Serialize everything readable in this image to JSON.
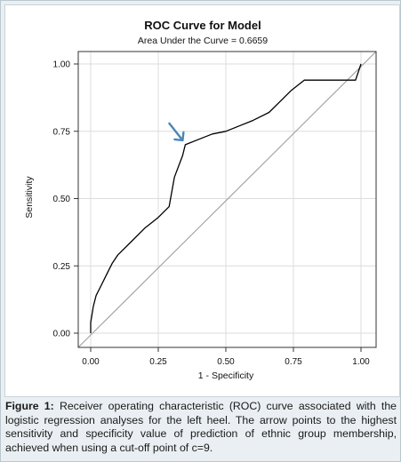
{
  "chart_data": {
    "type": "line",
    "title": "ROC Curve for Model",
    "subtitle": "Area Under the Curve = 0.6659",
    "xlabel": "1 - Specificity",
    "ylabel": "Sensitivity",
    "xlim": [
      0,
      1
    ],
    "ylim": [
      0,
      1
    ],
    "x_ticks": [
      "0.00",
      "0.25",
      "0.50",
      "0.75",
      "1.00"
    ],
    "y_ticks": [
      "0.00",
      "0.25",
      "0.50",
      "0.75",
      "1.00"
    ],
    "grid": true,
    "series": [
      {
        "x": [
          0.0,
          0.0,
          0.01,
          0.02,
          0.04,
          0.06,
          0.08,
          0.1,
          0.15,
          0.2,
          0.25,
          0.29,
          0.31,
          0.34,
          0.35,
          0.4,
          0.45,
          0.5,
          0.55,
          0.6,
          0.66,
          0.7,
          0.74,
          0.79,
          0.86,
          0.92,
          0.98,
          1.0
        ],
        "y": [
          0.0,
          0.04,
          0.1,
          0.14,
          0.18,
          0.22,
          0.26,
          0.29,
          0.34,
          0.39,
          0.43,
          0.47,
          0.58,
          0.66,
          0.7,
          0.72,
          0.74,
          0.75,
          0.77,
          0.79,
          0.82,
          0.86,
          0.9,
          0.94,
          0.94,
          0.94,
          0.94,
          1.0
        ],
        "color": "#000000"
      },
      {
        "x": [
          0.0,
          1.0
        ],
        "y": [
          0.0,
          1.0
        ],
        "color": "#999999"
      }
    ],
    "annotation": {
      "type": "arrow",
      "points_to": [
        0.35,
        0.7
      ],
      "color": "#4a86b8"
    }
  },
  "caption": {
    "label": "Figure 1:",
    "text": "Receiver operating characteristic (ROC) curve associated with the logistic regression analyses for the left heel. The arrow points to the highest sensitivity and specificity value of prediction of ethnic group membership, achieved when using a cut-off point of c=9."
  }
}
